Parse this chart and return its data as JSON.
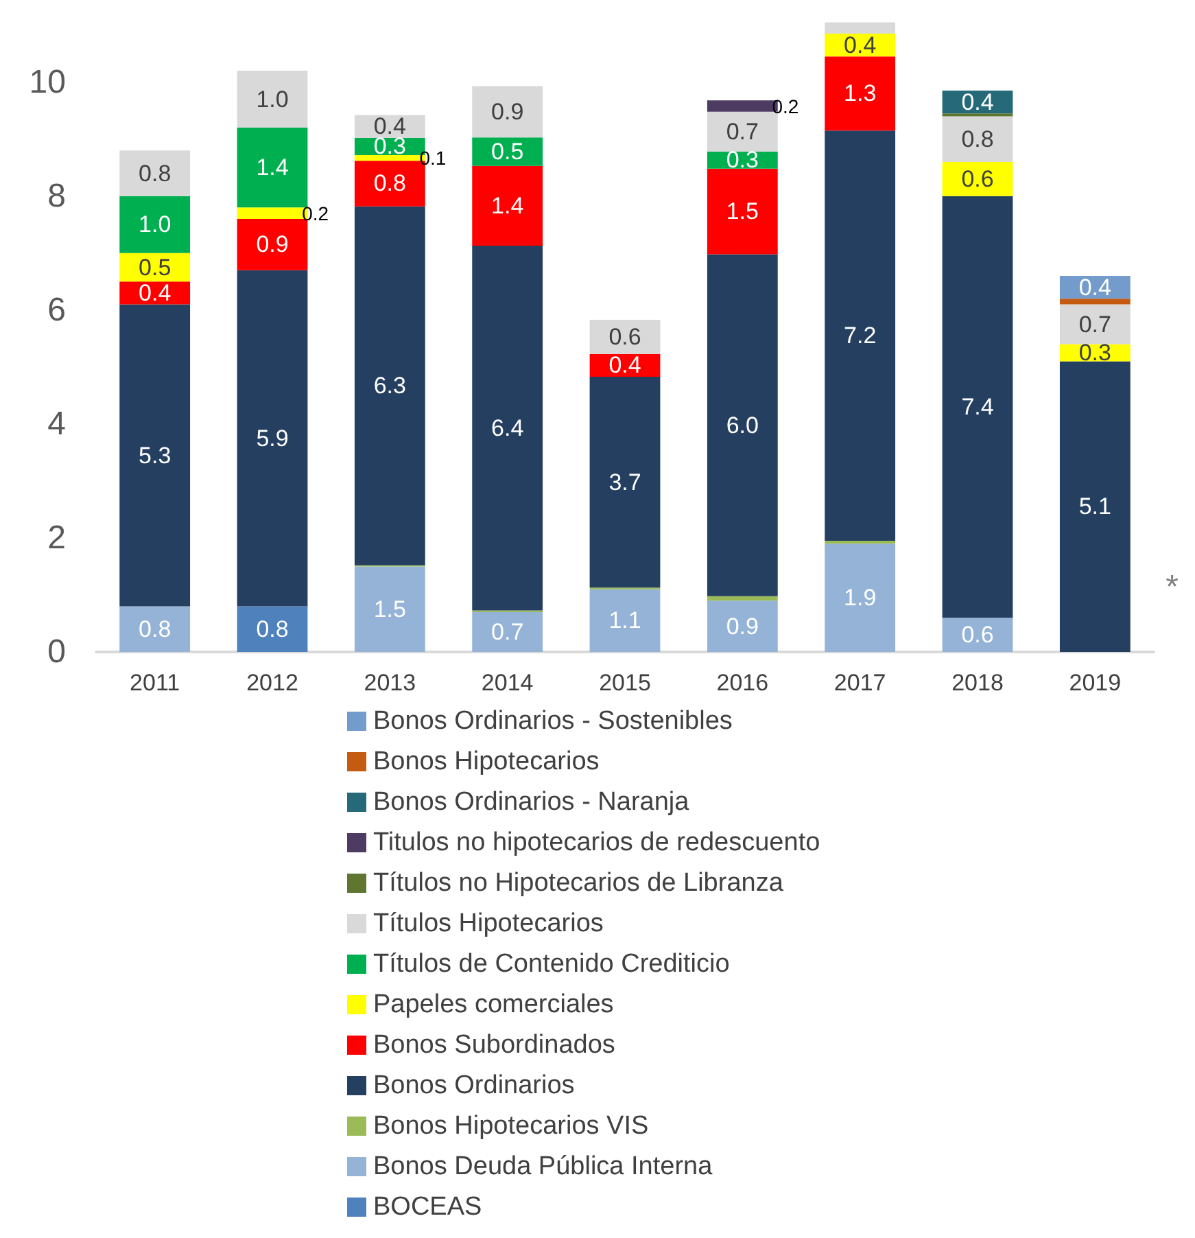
{
  "chart_data": {
    "type": "bar",
    "stacked": true,
    "categories": [
      "2011",
      "2012",
      "2013",
      "2014",
      "2015",
      "2016",
      "2017",
      "2018",
      "2019"
    ],
    "ylim": [
      0,
      11.2
    ],
    "yticks": [
      0,
      2,
      4,
      6,
      8,
      10
    ],
    "grid": false,
    "legend": "bottom",
    "annotations": [
      "*"
    ],
    "series": [
      {
        "name": "BOCEAS",
        "color": "#4f81bd",
        "values": [
          0,
          0.8,
          0,
          0,
          0,
          0,
          0,
          0,
          0
        ],
        "value_labels": [
          null,
          "0.8",
          null,
          null,
          null,
          null,
          null,
          null,
          null
        ]
      },
      {
        "name": "Bonos Deuda Pública Interna",
        "color": "#95b3d7",
        "values": [
          0.8,
          0,
          1.5,
          0.7,
          1.1,
          0.9,
          1.9,
          0.6,
          0
        ],
        "value_labels": [
          "0.8",
          null,
          "1.5",
          "0.7",
          "1.1",
          "0.9",
          "1.9",
          "0.6",
          null
        ]
      },
      {
        "name": "Bonos Hipotecarios VIS",
        "color": "#9bbb59",
        "values": [
          0,
          0,
          0.02,
          0.03,
          0.03,
          0.08,
          0.05,
          0,
          0
        ],
        "value_labels": [
          null,
          null,
          null,
          null,
          null,
          null,
          null,
          null,
          null
        ]
      },
      {
        "name": "Bonos Ordinarios",
        "color": "#253f60",
        "values": [
          5.3,
          5.9,
          6.3,
          6.4,
          3.7,
          6.0,
          7.2,
          7.4,
          5.1
        ],
        "value_labels": [
          "5.3",
          "5.9",
          "6.3",
          "6.4",
          "3.7",
          "6.0",
          "7.2",
          "7.4",
          "5.1"
        ]
      },
      {
        "name": "Bonos Subordinados",
        "color": "#ff0000",
        "values": [
          0.4,
          0.9,
          0.8,
          1.4,
          0.4,
          1.5,
          1.3,
          0,
          0
        ],
        "value_labels": [
          "0.4",
          "0.9",
          "0.8",
          "1.4",
          "0.4",
          "1.5",
          "1.3",
          null,
          null
        ]
      },
      {
        "name": "Papeles comerciales",
        "color": "#ffff00",
        "values": [
          0.5,
          0.2,
          0.1,
          0,
          0,
          0,
          0.4,
          0.6,
          0.3
        ],
        "value_labels": [
          "0.5",
          "0.2",
          "0.1",
          null,
          null,
          null,
          "0.4",
          "0.6",
          "0.3"
        ]
      },
      {
        "name": "Títulos de Contenido Crediticio",
        "color": "#00b050",
        "values": [
          1.0,
          1.4,
          0.3,
          0.5,
          0,
          0.3,
          0,
          0,
          0
        ],
        "value_labels": [
          "1.0",
          "1.4",
          "0.3",
          "0.5",
          null,
          "0.3",
          null,
          null,
          null
        ]
      },
      {
        "name": "Títulos Hipotecarios",
        "color": "#d9d9d9",
        "values": [
          0.8,
          1.0,
          0.4,
          0.9,
          0.6,
          0.7,
          0.2,
          0.8,
          0.7
        ],
        "value_labels": [
          "0.8",
          "1.0",
          "0.4",
          "0.9",
          "0.6",
          "0.7",
          null,
          "0.8",
          "0.7"
        ]
      },
      {
        "name": "Títulos no Hipotecarios de Libranza",
        "color": "#5f7530",
        "values": [
          0,
          0,
          0,
          0,
          0,
          0,
          0,
          0.05,
          0
        ],
        "value_labels": [
          null,
          null,
          null,
          null,
          null,
          null,
          null,
          null,
          null
        ]
      },
      {
        "name": "Titulos no hipotecarios de redescuento",
        "color": "#4e3b62",
        "values": [
          0,
          0,
          0,
          0,
          0,
          0.2,
          0,
          0,
          0
        ],
        "value_labels": [
          null,
          null,
          null,
          null,
          null,
          "0.2",
          null,
          null,
          null
        ]
      },
      {
        "name": "Bonos Ordinarios - Naranja",
        "color": "#266a7a",
        "values": [
          0,
          0,
          0,
          0,
          0,
          0,
          0,
          0.4,
          0
        ],
        "value_labels": [
          null,
          null,
          null,
          null,
          null,
          null,
          null,
          "0.4",
          null
        ]
      },
      {
        "name": "Bonos Hipotecarios",
        "color": "#c55a11",
        "values": [
          0,
          0,
          0,
          0,
          0,
          0,
          0,
          0,
          0.1
        ],
        "value_labels": [
          null,
          null,
          null,
          null,
          null,
          null,
          null,
          null,
          null
        ]
      },
      {
        "name": "Bonos Ordinarios - Sostenibles",
        "color": "#739bcc",
        "values": [
          0,
          0,
          0,
          0,
          0,
          0,
          0,
          0,
          0.4
        ],
        "value_labels": [
          null,
          null,
          null,
          null,
          null,
          null,
          null,
          null,
          "0.4"
        ]
      }
    ]
  }
}
